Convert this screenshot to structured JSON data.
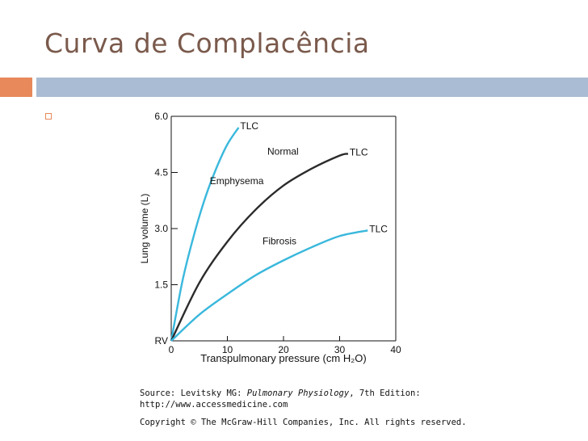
{
  "slide": {
    "title": "Curva de Complacência",
    "colors": {
      "title": "#7a5a4c",
      "accent_orange": "#e7895a",
      "accent_blue": "#a9bcd3"
    }
  },
  "source": {
    "line1_prefix": "Source: Levitsky MG: ",
    "line1_italic": "Pulmonary Physiology",
    "line1_suffix": ", 7th Edition:",
    "line2": "http://www.accessmedicine.com",
    "line3": "Copyright © The McGraw-Hill Companies, Inc. All rights reserved."
  },
  "chart_data": {
    "type": "line",
    "title": "",
    "xlabel": "Transpulmonary pressure (cm H₂O)",
    "ylabel": "Lung volume (L)",
    "xlim": [
      0,
      40
    ],
    "ylim": [
      0,
      6.0
    ],
    "x_ticks": [
      0,
      10,
      20,
      30,
      40
    ],
    "y_ticks": [
      {
        "value": 0,
        "label": "RV"
      },
      {
        "value": 1.5,
        "label": "1.5"
      },
      {
        "value": 3.0,
        "label": "3.0"
      },
      {
        "value": 4.5,
        "label": "4.5"
      },
      {
        "value": 6.0,
        "label": "6.0"
      }
    ],
    "grid": false,
    "legend": "none",
    "series": [
      {
        "name": "Emphysema",
        "color": "#3ab8dc",
        "end_label": "TLC",
        "points": [
          [
            0,
            0
          ],
          [
            2,
            1.6
          ],
          [
            4,
            2.8
          ],
          [
            6,
            3.8
          ],
          [
            8,
            4.6
          ],
          [
            10,
            5.25
          ],
          [
            12,
            5.7
          ]
        ]
      },
      {
        "name": "Normal",
        "color": "#2b2b2b",
        "end_label": "TLC",
        "points": [
          [
            0,
            0
          ],
          [
            5,
            1.55
          ],
          [
            10,
            2.65
          ],
          [
            15,
            3.5
          ],
          [
            20,
            4.15
          ],
          [
            25,
            4.6
          ],
          [
            30,
            4.95
          ],
          [
            31.5,
            5.0
          ]
        ]
      },
      {
        "name": "Fibrosis",
        "color": "#3ab8dc",
        "end_label": "TLC",
        "points": [
          [
            0,
            0
          ],
          [
            5,
            0.7
          ],
          [
            10,
            1.25
          ],
          [
            15,
            1.75
          ],
          [
            20,
            2.15
          ],
          [
            25,
            2.5
          ],
          [
            30,
            2.8
          ],
          [
            35,
            2.95
          ]
        ]
      }
    ]
  }
}
